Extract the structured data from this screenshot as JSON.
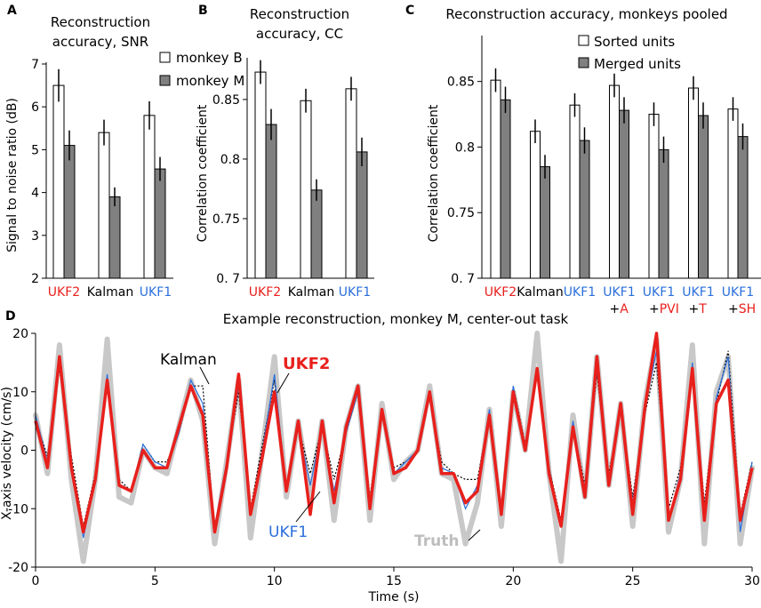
{
  "colors": {
    "ukf2": "#e8201c",
    "kalman": "#000000",
    "ukf1": "#2a6fdc",
    "truth": "#c8c8c8",
    "bar_b": "#ffffff",
    "bar_m": "#808080"
  },
  "panels": {
    "a": {
      "letter": "A",
      "title1": "Reconstruction",
      "title2": "accuracy, SNR",
      "ylabel": "Signal to noise ratio (dB)",
      "ticks": [
        "2",
        "3",
        "4",
        "5",
        "6",
        "7"
      ],
      "legend": [
        "monkey B",
        "monkey M"
      ],
      "xlabels": [
        "UKF2",
        "Kalman",
        "UKF1"
      ]
    },
    "b": {
      "letter": "B",
      "title1": "Reconstruction",
      "title2": "accuracy, CC",
      "ylabel": "Correlation coefficient",
      "ticks": [
        "0. 7",
        "0.75",
        "0.8",
        "0.85"
      ],
      "xlabels": [
        "UKF2",
        "Kalman",
        "UKF1"
      ]
    },
    "c": {
      "letter": "C",
      "title": "Reconstruction accuracy, monkeys pooled",
      "ylabel": "Correlation coefficient",
      "ticks": [
        "0. 7",
        "0.75",
        "0.8",
        "0.85"
      ],
      "legend": [
        "Sorted units",
        "Merged units"
      ],
      "xlabels": [
        "UKF2",
        "Kalman",
        "UKF1",
        "UKF1",
        "UKF1",
        "UKF1",
        "UKF1"
      ],
      "xplus": [
        "",
        "",
        "",
        "+A",
        "+PVI",
        "+T",
        "+SH"
      ]
    },
    "d": {
      "letter": "D",
      "title": "Example reconstruction, monkey M, center-out task",
      "ylabel": "X-axis velocity (cm/s)",
      "xlabel": "Time (s)",
      "xticks": [
        "0",
        "5",
        "10",
        "15",
        "20",
        "25",
        "30"
      ],
      "yticks": [
        "-20",
        "-10",
        "0",
        "10",
        "20"
      ],
      "annotations": [
        "Kalman",
        "UKF2",
        "UKF1",
        "Truth"
      ]
    }
  },
  "chart_data": [
    {
      "type": "bar",
      "title": "Reconstruction accuracy, SNR",
      "ylabel": "Signal to noise ratio (dB)",
      "ylim": [
        2,
        7
      ],
      "categories": [
        "UKF2",
        "Kalman",
        "UKF1"
      ],
      "series": [
        {
          "name": "monkey B",
          "values": [
            6.5,
            5.4,
            5.8
          ],
          "err": [
            0.38,
            0.3,
            0.33
          ]
        },
        {
          "name": "monkey M",
          "values": [
            5.1,
            3.9,
            4.55
          ],
          "err": [
            0.35,
            0.22,
            0.28
          ]
        }
      ]
    },
    {
      "type": "bar",
      "title": "Reconstruction accuracy, CC",
      "ylabel": "Correlation coefficient",
      "ylim": [
        0.7,
        0.885
      ],
      "categories": [
        "UKF2",
        "Kalman",
        "UKF1"
      ],
      "series": [
        {
          "name": "monkey B",
          "values": [
            0.873,
            0.849,
            0.859
          ],
          "err": [
            0.01,
            0.01,
            0.01
          ]
        },
        {
          "name": "monkey M",
          "values": [
            0.829,
            0.774,
            0.806
          ],
          "err": [
            0.013,
            0.009,
            0.012
          ]
        }
      ]
    },
    {
      "type": "bar",
      "title": "Reconstruction accuracy, monkeys pooled",
      "ylabel": "Correlation coefficient",
      "ylim": [
        0.7,
        0.885
      ],
      "categories": [
        "UKF2",
        "Kalman",
        "UKF1",
        "UKF1 +A",
        "UKF1 +PVI",
        "UKF1 +T",
        "UKF1 +SH"
      ],
      "series": [
        {
          "name": "Sorted units",
          "values": [
            0.851,
            0.812,
            0.832,
            0.847,
            0.825,
            0.845,
            0.829
          ],
          "err": [
            0.009,
            0.009,
            0.009,
            0.009,
            0.009,
            0.009,
            0.009
          ]
        },
        {
          "name": "Merged units",
          "values": [
            0.836,
            0.785,
            0.805,
            0.828,
            0.798,
            0.824,
            0.808
          ],
          "err": [
            0.01,
            0.009,
            0.01,
            0.01,
            0.01,
            0.01,
            0.01
          ]
        }
      ]
    },
    {
      "type": "line",
      "title": "Example reconstruction, monkey M, center-out task",
      "xlabel": "Time (s)",
      "ylabel": "X-axis velocity (cm/s)",
      "xlim": [
        0,
        30
      ],
      "ylim": [
        -20,
        20
      ],
      "x": [
        0,
        0.5,
        1,
        1.5,
        2,
        2.5,
        3,
        3.5,
        4,
        4.5,
        5,
        5.5,
        6,
        6.5,
        7,
        7.5,
        8,
        8.5,
        9,
        9.5,
        10,
        10.5,
        11,
        11.5,
        12,
        12.5,
        13,
        13.5,
        14,
        14.5,
        15,
        15.5,
        16,
        16.5,
        17,
        17.5,
        18,
        18.5,
        19,
        19.5,
        20,
        20.5,
        21,
        21.5,
        22,
        22.5,
        23,
        23.5,
        24,
        24.5,
        25,
        25.5,
        26,
        26.5,
        27,
        27.5,
        28,
        28.5,
        29,
        29.5,
        30
      ],
      "series": [
        {
          "name": "Truth",
          "values": [
            6,
            -4,
            18,
            -5,
            -19,
            -5,
            19,
            -8,
            -9,
            0,
            -3,
            -4,
            4,
            12,
            5,
            -16,
            -2,
            12,
            -15,
            0,
            16,
            -8,
            5,
            -8,
            5,
            -12,
            4,
            11,
            -12,
            8,
            -5,
            -2,
            0,
            11,
            -4,
            -5,
            -16,
            -9,
            7,
            -13,
            10,
            0,
            20,
            -4,
            -19,
            6,
            -8,
            16,
            -6,
            8,
            -13,
            8,
            19,
            -14,
            -5,
            18,
            -16,
            10,
            16,
            -16,
            -3
          ]
        },
        {
          "name": "Kalman",
          "values": [
            5,
            -1,
            14,
            -1,
            -13,
            -4,
            12,
            -5,
            -7,
            1,
            -2,
            -2,
            3,
            11,
            11,
            -14,
            -2,
            10,
            -10,
            1,
            12,
            -6,
            4,
            -4,
            4,
            -5,
            3,
            10,
            -8,
            6,
            -3,
            -2,
            0,
            9,
            -2,
            -4,
            -5,
            -5,
            6,
            -10,
            11,
            1,
            14,
            -3,
            -12,
            4,
            -6,
            13,
            -4,
            7,
            -8,
            6,
            15,
            -10,
            -3,
            13,
            -9,
            8,
            17,
            -11,
            -2
          ]
        },
        {
          "name": "UKF1",
          "values": [
            6,
            -2,
            16,
            -2,
            -15,
            -5,
            13,
            -6,
            -7,
            1,
            -2,
            -3,
            3,
            12,
            8,
            -13,
            -2,
            11,
            -11,
            0,
            13,
            -7,
            4,
            -6,
            4,
            -7,
            3,
            10,
            -9,
            7,
            -4,
            -2,
            0,
            10,
            -3,
            -4,
            -10,
            -6,
            7,
            -11,
            11,
            0,
            14,
            -3,
            -13,
            5,
            -7,
            14,
            -5,
            7,
            -9,
            7,
            17,
            -12,
            -4,
            15,
            -12,
            9,
            16,
            -14,
            -2
          ]
        },
        {
          "name": "UKF2",
          "values": [
            5,
            -3,
            16,
            -3,
            -14,
            -5,
            12,
            -6,
            -7,
            0,
            -3,
            -3,
            4,
            11,
            6,
            -14,
            -3,
            13,
            -11,
            -1,
            10,
            -7,
            5,
            -11,
            5,
            -9,
            4,
            11,
            -10,
            7,
            -4,
            -3,
            0,
            10,
            -4,
            -4,
            -9,
            -7,
            6,
            -11,
            10,
            0,
            14,
            -4,
            -13,
            4,
            -8,
            16,
            -6,
            8,
            -11,
            7,
            20,
            -12,
            -5,
            14,
            -12,
            8,
            12,
            -12,
            -3
          ]
        }
      ]
    }
  ]
}
